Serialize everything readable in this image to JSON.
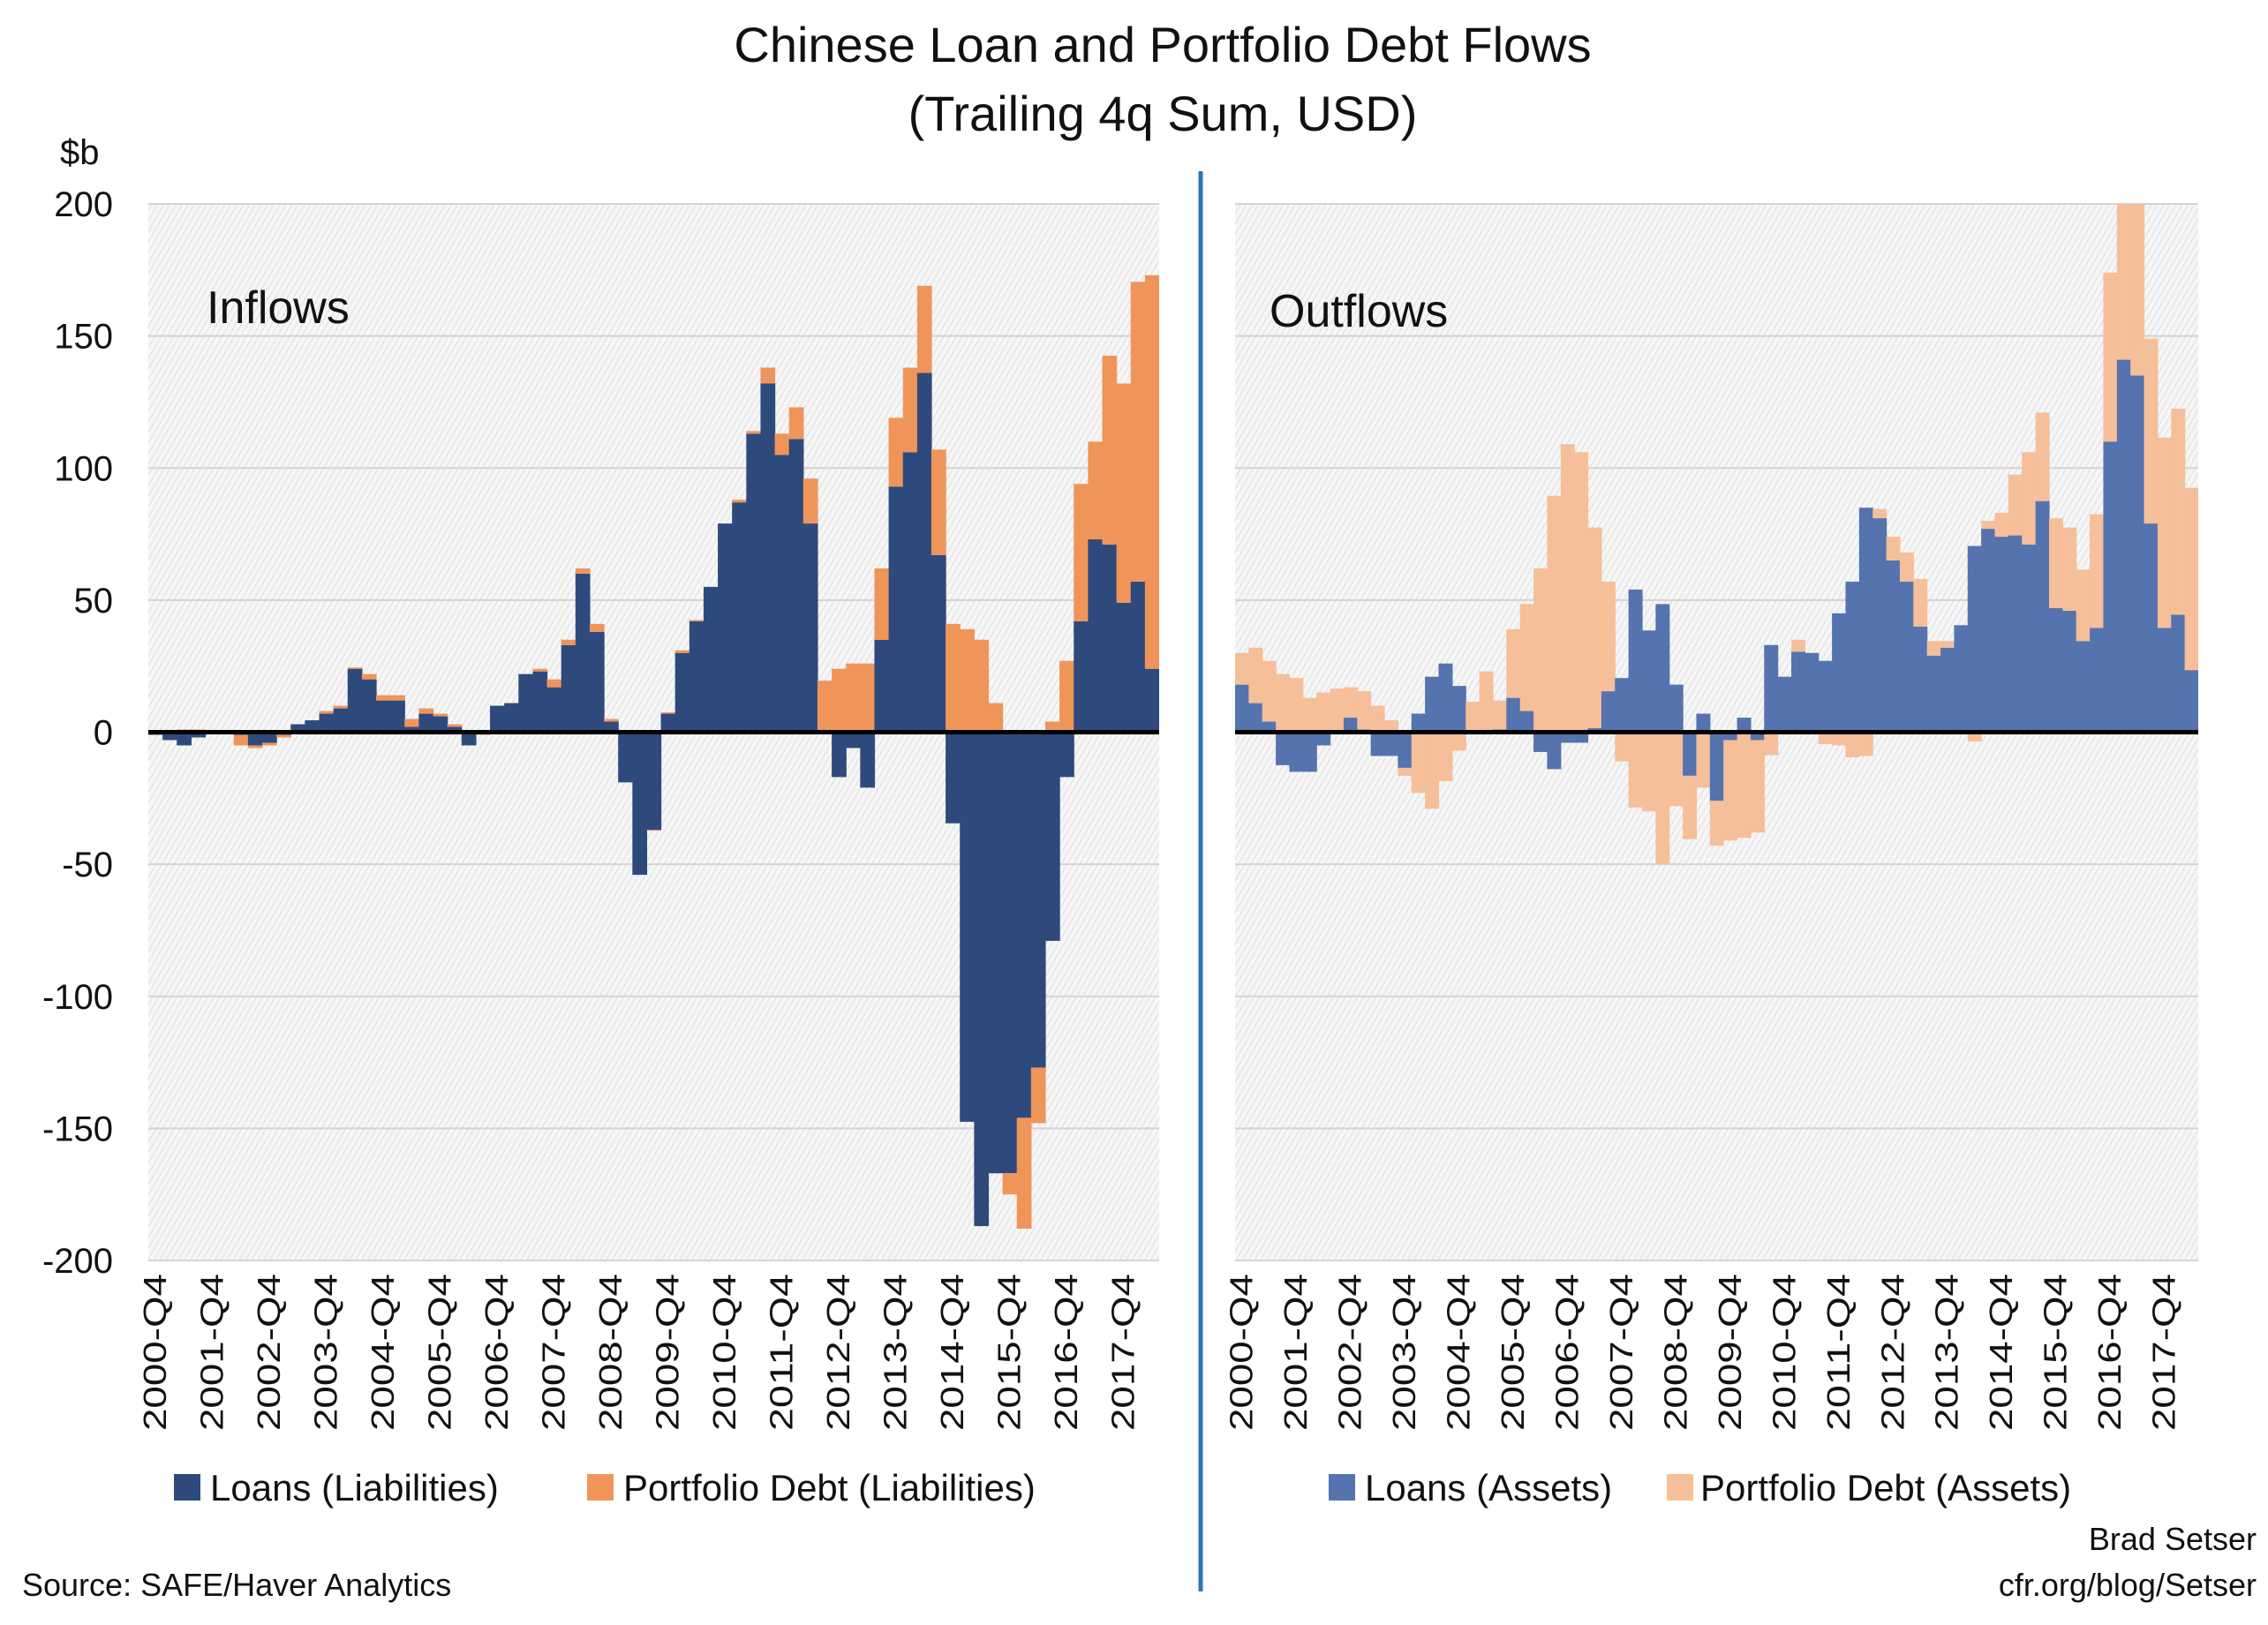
{
  "title": "Chinese Loan and Portfolio Debt Flows",
  "subtitle": "(Trailing 4q Sum, USD)",
  "unit_label": "$b",
  "source": "Source: SAFE/Haver Analytics",
  "author": "Brad Setser",
  "author_url": "cfr.org/blog/Setser",
  "divider_color": "#2E75B6",
  "chart_data": [
    {
      "type": "bar",
      "stacked": true,
      "panel_label": "Inflows",
      "ylabel": "$b",
      "ylim": [
        -200,
        200
      ],
      "yticks": [
        "200",
        "150",
        "100",
        "50",
        "0",
        "-50",
        "-100",
        "-150",
        "-200"
      ],
      "grid": true,
      "legend": "bottom",
      "categories": [
        "2000-Q4",
        "2001-Q1",
        "2001-Q2",
        "2001-Q3",
        "2001-Q4",
        "2002-Q1",
        "2002-Q2",
        "2002-Q3",
        "2002-Q4",
        "2003-Q1",
        "2003-Q2",
        "2003-Q3",
        "2003-Q4",
        "2004-Q1",
        "2004-Q2",
        "2004-Q3",
        "2004-Q4",
        "2005-Q1",
        "2005-Q2",
        "2005-Q3",
        "2005-Q4",
        "2006-Q1",
        "2006-Q2",
        "2006-Q3",
        "2006-Q4",
        "2007-Q1",
        "2007-Q2",
        "2007-Q3",
        "2007-Q4",
        "2008-Q1",
        "2008-Q2",
        "2008-Q3",
        "2008-Q4",
        "2009-Q1",
        "2009-Q2",
        "2009-Q3",
        "2009-Q4",
        "2010-Q1",
        "2010-Q2",
        "2010-Q3",
        "2010-Q4",
        "2011-Q1",
        "2011-Q2",
        "2011-Q3",
        "2011-Q4",
        "2012-Q1",
        "2012-Q2",
        "2012-Q3",
        "2012-Q4",
        "2013-Q1",
        "2013-Q2",
        "2013-Q3",
        "2013-Q4",
        "2014-Q1",
        "2014-Q2",
        "2014-Q3",
        "2014-Q4",
        "2015-Q1",
        "2015-Q2",
        "2015-Q3",
        "2015-Q4",
        "2016-Q1",
        "2016-Q2",
        "2016-Q3",
        "2016-Q4",
        "2017-Q1",
        "2017-Q2",
        "2017-Q3",
        "2017-Q4",
        "2018-Q1",
        "2018-Q2"
      ],
      "x_tick_labels": [
        "2000-Q4",
        "2001-Q4",
        "2002-Q4",
        "2003-Q4",
        "2004-Q4",
        "2005-Q4",
        "2006-Q4",
        "2007-Q4",
        "2008-Q4",
        "2009-Q4",
        "2010-Q4",
        "2011-Q4",
        "2012-Q4",
        "2013-Q4",
        "2014-Q4",
        "2015-Q4",
        "2016-Q4",
        "2017-Q4"
      ],
      "series": [
        {
          "name": "Loans (Liabilities)",
          "color": "#2E4A7D",
          "values": [
            -1,
            -3,
            -5,
            -2,
            0,
            0,
            -1,
            -5,
            -4,
            -1,
            3,
            4.5,
            7,
            9,
            24,
            20,
            12,
            12,
            2,
            7,
            6,
            2,
            -5,
            0,
            10,
            11,
            22,
            23,
            17,
            33,
            60,
            38,
            4,
            -19,
            -54,
            -37,
            7,
            30,
            42,
            55,
            79,
            87,
            113,
            132,
            105,
            111,
            79,
            0.5,
            -17,
            -6,
            -21,
            35,
            93,
            106,
            136,
            67,
            -34.5,
            -147.5,
            -187,
            -167,
            -167,
            -146,
            -127,
            -79,
            -17,
            42,
            73,
            71,
            49,
            57,
            24
          ]
        },
        {
          "name": "Portfolio Debt (Liabilities)",
          "color": "#F0955A",
          "values": [
            0,
            0,
            1,
            1,
            0,
            0,
            -4,
            -1,
            -1,
            -1,
            0,
            0,
            1,
            1,
            0.5,
            2,
            2,
            2,
            3,
            2,
            1,
            1,
            0,
            -1,
            0,
            0,
            0,
            1,
            3,
            2,
            2,
            3,
            1,
            0,
            0.5,
            -0.3,
            0.5,
            1,
            0.5,
            0,
            0,
            1,
            1,
            6,
            8,
            12,
            17,
            19,
            24,
            26,
            26,
            27,
            26,
            32,
            33,
            40,
            41,
            39,
            35,
            11,
            -8,
            -42,
            -21,
            4,
            27,
            52,
            37,
            71.5,
            83,
            113.5,
            149
          ]
        }
      ]
    },
    {
      "type": "bar",
      "stacked": true,
      "panel_label": "Outflows",
      "ylim": [
        -200,
        200
      ],
      "grid": true,
      "legend": "bottom",
      "categories": [
        "2000-Q4",
        "2001-Q1",
        "2001-Q2",
        "2001-Q3",
        "2001-Q4",
        "2002-Q1",
        "2002-Q2",
        "2002-Q3",
        "2002-Q4",
        "2003-Q1",
        "2003-Q2",
        "2003-Q3",
        "2003-Q4",
        "2004-Q1",
        "2004-Q2",
        "2004-Q3",
        "2004-Q4",
        "2005-Q1",
        "2005-Q2",
        "2005-Q3",
        "2005-Q4",
        "2006-Q1",
        "2006-Q2",
        "2006-Q3",
        "2006-Q4",
        "2007-Q1",
        "2007-Q2",
        "2007-Q3",
        "2007-Q4",
        "2008-Q1",
        "2008-Q2",
        "2008-Q3",
        "2008-Q4",
        "2009-Q1",
        "2009-Q2",
        "2009-Q3",
        "2009-Q4",
        "2010-Q1",
        "2010-Q2",
        "2010-Q3",
        "2010-Q4",
        "2011-Q1",
        "2011-Q2",
        "2011-Q3",
        "2011-Q4",
        "2012-Q1",
        "2012-Q2",
        "2012-Q3",
        "2012-Q4",
        "2013-Q1",
        "2013-Q2",
        "2013-Q3",
        "2013-Q4",
        "2014-Q1",
        "2014-Q2",
        "2014-Q3",
        "2014-Q4",
        "2015-Q1",
        "2015-Q2",
        "2015-Q3",
        "2015-Q4",
        "2016-Q1",
        "2016-Q2",
        "2016-Q3",
        "2016-Q4",
        "2017-Q1",
        "2017-Q2",
        "2017-Q3",
        "2017-Q4",
        "2018-Q1",
        "2018-Q2"
      ],
      "x_tick_labels": [
        "2000-Q4",
        "2001-Q4",
        "2002-Q4",
        "2003-Q4",
        "2004-Q4",
        "2005-Q4",
        "2006-Q4",
        "2007-Q4",
        "2008-Q4",
        "2009-Q4",
        "2010-Q4",
        "2011-Q4",
        "2012-Q4",
        "2013-Q4",
        "2014-Q4",
        "2015-Q4",
        "2016-Q4",
        "2017-Q4"
      ],
      "series": [
        {
          "name": "Loans (Assets)",
          "color": "#5573AE",
          "values": [
            18,
            11,
            4,
            -12.5,
            -15,
            -15,
            -5,
            0,
            5.5,
            1,
            -9,
            -9,
            -13.5,
            7,
            21,
            26,
            17.5,
            0,
            0,
            1,
            13,
            8,
            -7.5,
            -14,
            -4,
            -4,
            1.5,
            15.5,
            20.5,
            54,
            38.5,
            48.5,
            18,
            -16.5,
            7,
            -26,
            -3,
            5.5,
            -3,
            33,
            21,
            30.5,
            30,
            27,
            45,
            57,
            85,
            81,
            65,
            57,
            40,
            29,
            32,
            40.5,
            70.5,
            77,
            74,
            74.5,
            71,
            87.5,
            47,
            46,
            34.5,
            39.5,
            110,
            141,
            135,
            79,
            39.5,
            44.5,
            23.5
          ]
        },
        {
          "name": "Portfolio Debt (Assets)",
          "color": "#F5BF9A",
          "values": [
            12,
            21,
            23,
            22,
            20.5,
            13,
            15,
            16.5,
            11.5,
            14.5,
            10,
            4.5,
            -3,
            -23,
            -29,
            -18.5,
            -7,
            11.5,
            23,
            11,
            26,
            40.5,
            62,
            89.5,
            109,
            106,
            76,
            41.5,
            -11,
            -28.5,
            -30,
            -50,
            -28,
            -24,
            -21,
            -17,
            -38,
            -40,
            -35,
            -8.7,
            0,
            4.5,
            0,
            -4.5,
            -5,
            -9.5,
            -9,
            3.5,
            9,
            11,
            18,
            5.5,
            2.5,
            0,
            -3.5,
            3,
            9,
            23,
            35,
            33.5,
            34,
            31.5,
            27,
            43,
            64,
            59,
            65,
            70,
            72,
            78,
            69
          ]
        }
      ]
    }
  ]
}
